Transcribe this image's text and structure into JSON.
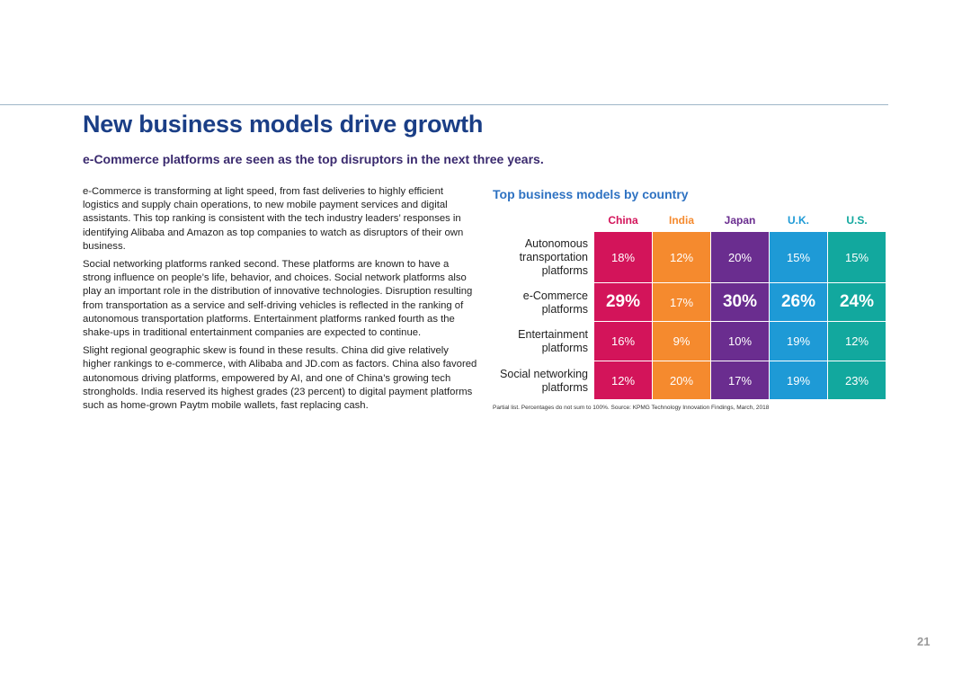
{
  "title": "New business models drive growth",
  "subtitle": "e-Commerce platforms are seen as the top disruptors in the next three years.",
  "paragraphs": [
    "e-Commerce is transforming at light speed, from fast deliveries to highly efficient logistics and supply chain operations, to new mobile payment services and digital assistants. This top ranking is consistent with the tech industry leaders’ responses in identifying Alibaba and Amazon as top companies to watch as disruptors of their own business.",
    "Social networking platforms ranked second. These platforms are known to have a strong influence on people’s life, behavior, and choices. Social network platforms also play an important role in the distribution of innovative technologies. Disruption resulting from transportation as a service and self-driving vehicles is reflected in the ranking of autonomous transportation platforms. Entertainment platforms ranked fourth as the shake-ups in traditional entertainment companies are expected to continue.",
    "Slight regional geographic skew is found in these results. China did give relatively higher rankings to e-commerce, with Alibaba and JD.com as factors. China also favored autonomous driving platforms, empowered by AI, and one of China’s growing tech strongholds. India reserved its highest grades (23 percent) to digital payment platforms such as home-grown Paytm mobile wallets, fast replacing cash."
  ],
  "table": {
    "title": "Top business models by country",
    "columns": [
      {
        "label": "China",
        "color": "#d3145a"
      },
      {
        "label": "India",
        "color": "#f58a2e"
      },
      {
        "label": "Japan",
        "color": "#6a2d8f"
      },
      {
        "label": "U.K.",
        "color": "#1e9ad6"
      },
      {
        "label": "U.S.",
        "color": "#12a89e"
      }
    ],
    "rows": [
      {
        "label": "Autonomous transportation platforms",
        "values": [
          "18%",
          "12%",
          "20%",
          "15%",
          "15%"
        ],
        "big": [
          false,
          false,
          false,
          false,
          false
        ]
      },
      {
        "label": "e-Commerce platforms",
        "values": [
          "29%",
          "17%",
          "30%",
          "26%",
          "24%"
        ],
        "big": [
          true,
          false,
          true,
          true,
          true
        ]
      },
      {
        "label": "Entertainment platforms",
        "values": [
          "16%",
          "9%",
          "10%",
          "19%",
          "12%"
        ],
        "big": [
          false,
          false,
          false,
          false,
          false
        ]
      },
      {
        "label": "Social networking platforms",
        "values": [
          "12%",
          "20%",
          "17%",
          "19%",
          "23%"
        ],
        "big": [
          false,
          false,
          false,
          false,
          false
        ]
      }
    ],
    "footnote": "Partial list. Percentages do not sum to 100%. Source: KPMG Technology Innovation Findings, March, 2018"
  },
  "page_number": "21"
}
